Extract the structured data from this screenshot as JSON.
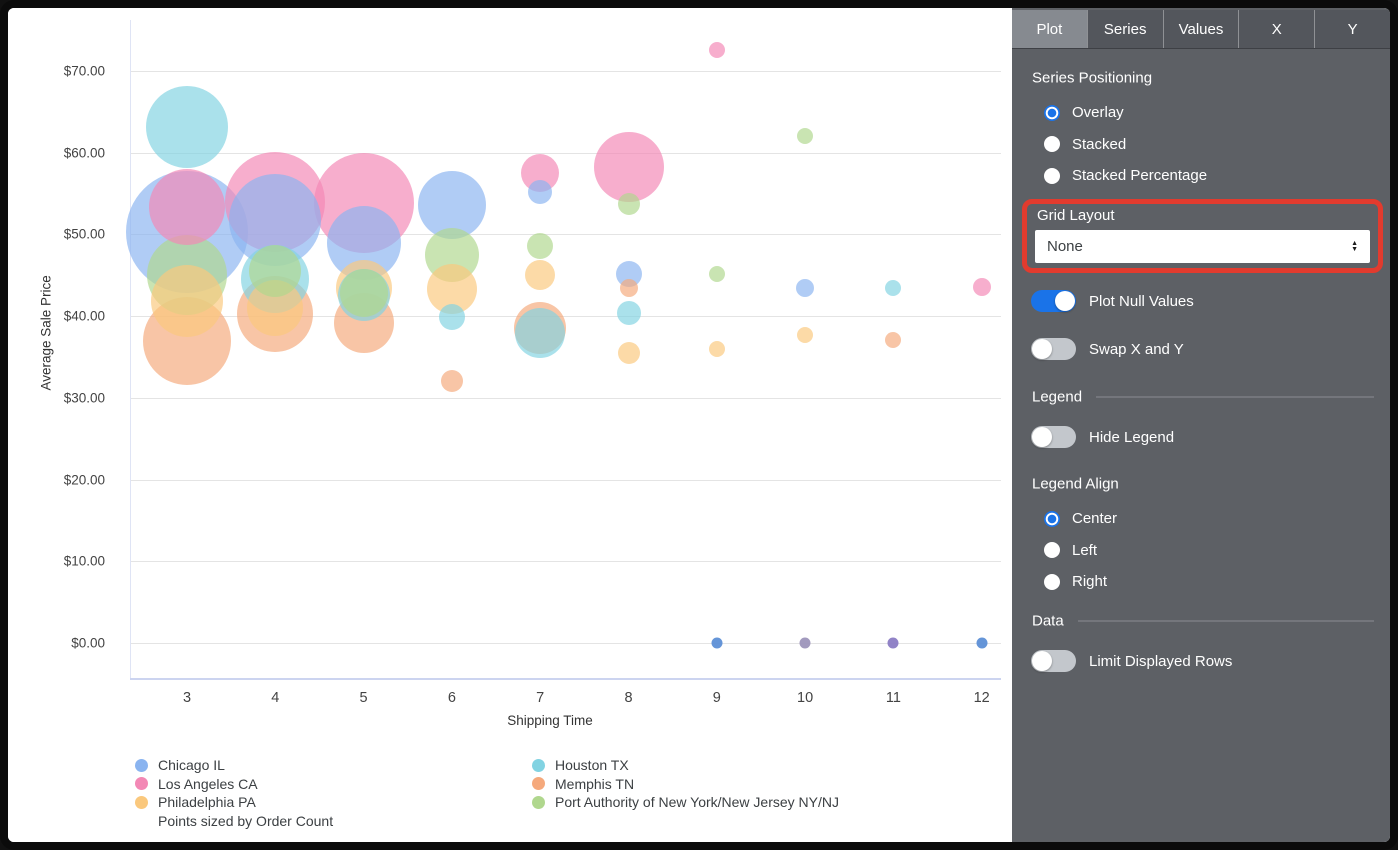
{
  "chart_data": {
    "type": "scatter",
    "subtype": "bubble",
    "title": "",
    "xlabel": "Shipping Time",
    "ylabel": "Average Sale Price",
    "xlim": [
      2.5,
      12.5
    ],
    "ylim": [
      0,
      75
    ],
    "x_ticks": [
      3,
      4,
      5,
      6,
      7,
      8,
      9,
      10,
      11,
      12
    ],
    "y_ticks": [
      0,
      10,
      20,
      30,
      40,
      50,
      60,
      70
    ],
    "y_tick_labels": [
      "$0.00",
      "$10.00",
      "$20.00",
      "$30.00",
      "$40.00",
      "$50.00",
      "$60.00",
      "$70.00"
    ],
    "grid": true,
    "legend_position": "bottom",
    "sized_by_note": "Points sized by Order Count",
    "series": [
      {
        "name": "Chicago IL",
        "color": "#8ab4f0",
        "points": [
          {
            "x": 3,
            "y": 50.3,
            "r": 61
          },
          {
            "x": 4,
            "y": 51.8,
            "r": 46
          },
          {
            "x": 5,
            "y": 49.0,
            "r": 37
          },
          {
            "x": 6,
            "y": 53.6,
            "r": 34
          },
          {
            "x": 7,
            "y": 55.2,
            "r": 12
          },
          {
            "x": 8,
            "y": 45.2,
            "r": 13
          },
          {
            "x": 10,
            "y": 43.4,
            "r": 9
          }
        ]
      },
      {
        "name": "Los Angeles CA",
        "color": "#f388b5",
        "points": [
          {
            "x": 3,
            "y": 53.4,
            "r": 38
          },
          {
            "x": 4,
            "y": 54.0,
            "r": 50
          },
          {
            "x": 5,
            "y": 53.9,
            "r": 50
          },
          {
            "x": 7,
            "y": 57.5,
            "r": 19
          },
          {
            "x": 8,
            "y": 58.2,
            "r": 35
          },
          {
            "x": 9,
            "y": 72.6,
            "r": 8
          },
          {
            "x": 12,
            "y": 43.6,
            "r": 9
          }
        ]
      },
      {
        "name": "Philadelphia PA",
        "color": "#fac87d",
        "points": [
          {
            "x": 3,
            "y": 41.8,
            "r": 36
          },
          {
            "x": 4,
            "y": 41.0,
            "r": 28
          },
          {
            "x": 5,
            "y": 43.5,
            "r": 28
          },
          {
            "x": 6,
            "y": 43.3,
            "r": 25
          },
          {
            "x": 7,
            "y": 45.0,
            "r": 15
          },
          {
            "x": 8,
            "y": 35.5,
            "r": 11
          },
          {
            "x": 9,
            "y": 36.0,
            "r": 8
          },
          {
            "x": 10,
            "y": 37.7,
            "r": 8
          }
        ]
      },
      {
        "name": "Houston TX",
        "color": "#82d3e2",
        "points": [
          {
            "x": 3,
            "y": 63.2,
            "r": 41
          },
          {
            "x": 4,
            "y": 44.6,
            "r": 34
          },
          {
            "x": 5,
            "y": 42.6,
            "r": 26
          },
          {
            "x": 6,
            "y": 39.9,
            "r": 13
          },
          {
            "x": 7,
            "y": 38.0,
            "r": 25
          },
          {
            "x": 8,
            "y": 40.4,
            "r": 12
          },
          {
            "x": 11,
            "y": 43.5,
            "r": 8
          }
        ]
      },
      {
        "name": "Memphis TN",
        "color": "#f5a97c",
        "points": [
          {
            "x": 3,
            "y": 37.0,
            "r": 44
          },
          {
            "x": 4,
            "y": 40.3,
            "r": 38
          },
          {
            "x": 5,
            "y": 39.2,
            "r": 30
          },
          {
            "x": 6,
            "y": 32.1,
            "r": 11
          },
          {
            "x": 7,
            "y": 38.5,
            "r": 26
          },
          {
            "x": 8,
            "y": 43.4,
            "r": 9
          },
          {
            "x": 11,
            "y": 37.1,
            "r": 8
          }
        ]
      },
      {
        "name": "Port Authority of New York/New Jersey NY/NJ",
        "color": "#b0d78e",
        "points": [
          {
            "x": 3,
            "y": 45.0,
            "r": 40
          },
          {
            "x": 4,
            "y": 45.5,
            "r": 26
          },
          {
            "x": 5,
            "y": 42.8,
            "r": 24
          },
          {
            "x": 6,
            "y": 47.5,
            "r": 27
          },
          {
            "x": 7,
            "y": 48.6,
            "r": 13
          },
          {
            "x": 8,
            "y": 53.7,
            "r": 11
          },
          {
            "x": 9,
            "y": 45.2,
            "r": 8
          },
          {
            "x": 10,
            "y": 62.0,
            "r": 8
          }
        ]
      }
    ],
    "zero_value_points": [
      {
        "x": 9,
        "y": 0,
        "r": 5.5,
        "color": "#5d8fd6"
      },
      {
        "x": 10,
        "y": 0,
        "r": 5.5,
        "color": "#9d95bb"
      },
      {
        "x": 11,
        "y": 0,
        "r": 5.5,
        "color": "#8b7cc4"
      },
      {
        "x": 12,
        "y": 0,
        "r": 5.5,
        "color": "#5d8fd6"
      }
    ]
  },
  "legend": {
    "columns": [
      [
        {
          "label": "Chicago IL",
          "color": "#8ab4f0"
        },
        {
          "label": "Los Angeles CA",
          "color": "#f388b5"
        },
        {
          "label": "Philadelphia PA",
          "color": "#fac87d"
        }
      ],
      [
        {
          "label": "Houston TX",
          "color": "#82d3e2"
        },
        {
          "label": "Memphis TN",
          "color": "#f5a97c"
        },
        {
          "label": "Port Authority of New York/New Jersey NY/NJ",
          "color": "#b0d78e"
        }
      ]
    ],
    "note": "Points sized by Order Count"
  },
  "panel": {
    "accent_color": "#1a73e8",
    "highlight_color": "#e23b2e",
    "tabs": [
      {
        "label": "Plot",
        "active": true
      },
      {
        "label": "Series",
        "active": false
      },
      {
        "label": "Values",
        "active": false
      },
      {
        "label": "X",
        "active": false
      },
      {
        "label": "Y",
        "active": false
      }
    ],
    "series_positioning": {
      "label": "Series Positioning",
      "options": [
        {
          "label": "Overlay",
          "selected": true
        },
        {
          "label": "Stacked",
          "selected": false
        },
        {
          "label": "Stacked Percentage",
          "selected": false
        }
      ]
    },
    "grid_layout": {
      "label": "Grid Layout",
      "value": "None",
      "highlighted": true
    },
    "plot_null_values": {
      "label": "Plot Null Values",
      "on": true
    },
    "swap_x_y": {
      "label": "Swap X and Y",
      "on": false
    },
    "legend_section": {
      "header": "Legend",
      "hide_legend": {
        "label": "Hide Legend",
        "on": false
      },
      "align": {
        "label": "Legend Align",
        "options": [
          {
            "label": "Center",
            "selected": true
          },
          {
            "label": "Left",
            "selected": false
          },
          {
            "label": "Right",
            "selected": false
          }
        ]
      }
    },
    "data_section": {
      "header": "Data",
      "limit_displayed_rows": {
        "label": "Limit Displayed Rows",
        "on": false
      }
    }
  }
}
